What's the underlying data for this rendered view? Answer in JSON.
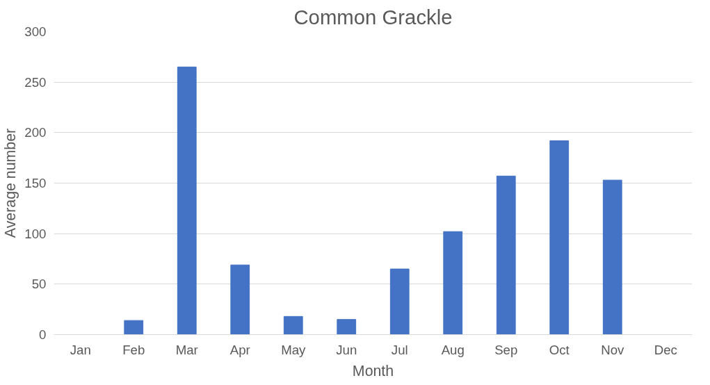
{
  "chart_data": {
    "type": "bar",
    "title": "Common Grackle",
    "xlabel": "Month",
    "ylabel": "Average number",
    "categories": [
      "Jan",
      "Feb",
      "Mar",
      "Apr",
      "May",
      "Jun",
      "Jul",
      "Aug",
      "Sep",
      "Oct",
      "Nov",
      "Dec"
    ],
    "values": [
      0,
      14,
      265,
      69,
      18,
      15,
      65,
      102,
      157,
      192,
      153,
      0
    ],
    "color": "#4472c4",
    "ylim": [
      0,
      300
    ],
    "yticks": [
      0,
      50,
      100,
      150,
      200,
      250,
      300
    ],
    "grid": "y"
  }
}
